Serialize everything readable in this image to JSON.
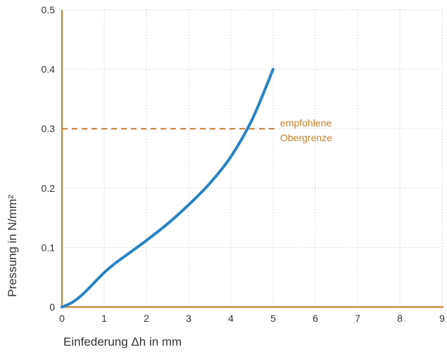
{
  "chart_data": {
    "type": "line",
    "title": "",
    "xlabel": "Einfederung Δh in mm",
    "ylabel": "Pressung in N/mm²",
    "xlim": [
      0,
      9
    ],
    "ylim": [
      0,
      0.5
    ],
    "x_ticks": [
      "0",
      "1",
      "2",
      "3",
      "4",
      "5",
      "6",
      "7",
      "8",
      "9"
    ],
    "y_ticks": [
      "0",
      "0.1",
      "0.2",
      "0.3",
      "0.4",
      "0.5"
    ],
    "grid": true,
    "series": [
      {
        "x": [
          0,
          0.25,
          0.5,
          0.75,
          1.0,
          1.25,
          1.5,
          2.0,
          2.5,
          3.0,
          3.5,
          4.0,
          4.5,
          5.0
        ],
        "y": [
          0,
          0.008,
          0.022,
          0.04,
          0.058,
          0.073,
          0.086,
          0.112,
          0.14,
          0.172,
          0.208,
          0.253,
          0.315,
          0.4
        ],
        "color": "#2a82c4"
      }
    ],
    "reference_line": {
      "y": 0.3,
      "x_range": [
        0,
        5
      ],
      "color": "#c47c30",
      "style": "dashed",
      "label_lines": [
        "empfohlene",
        "Obergrenze"
      ]
    },
    "axis_color": "#c47c30",
    "grid_color": "#bbbbbb"
  }
}
